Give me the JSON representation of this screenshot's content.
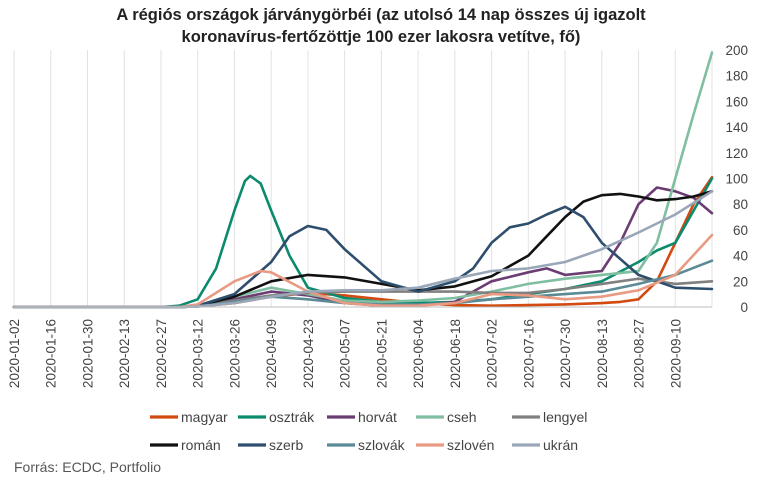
{
  "chart_data": {
    "type": "line",
    "title_lines": [
      "A régiós országok járványgörbéi (az utolsó 14 nap összes új igazolt",
      "koronavírus-fertőzöttje 100 ezer lakosra vetítve, fő)"
    ],
    "y_axis": {
      "min": 0,
      "max": 200,
      "step": 20,
      "position": "right",
      "ticks": [
        "0",
        "20",
        "40",
        "60",
        "80",
        "100",
        "120",
        "140",
        "160",
        "180",
        "200"
      ]
    },
    "x_axis": {
      "start": "2020-01-02",
      "end": "2020-09-24",
      "tick_labels": [
        "2020-01-02",
        "2020-01-16",
        "2020-01-30",
        "2020-02-13",
        "2020-02-27",
        "2020-03-12",
        "2020-03-26",
        "2020-04-09",
        "2020-04-23",
        "2020-05-07",
        "2020-05-21",
        "2020-06-04",
        "2020-06-18",
        "2020-07-02",
        "2020-07-16",
        "2020-07-30",
        "2020-08-13",
        "2020-08-27",
        "2020-09-10"
      ]
    },
    "grid": "vertical",
    "legend_position": "bottom",
    "series": [
      {
        "name": "magyar",
        "color": "#d24a10",
        "points": [
          [
            "2020-01-02",
            0
          ],
          [
            "2020-03-05",
            0
          ],
          [
            "2020-03-12",
            0.5
          ],
          [
            "2020-03-26",
            3
          ],
          [
            "2020-04-09",
            8
          ],
          [
            "2020-04-23",
            11
          ],
          [
            "2020-05-07",
            9
          ],
          [
            "2020-05-21",
            6
          ],
          [
            "2020-06-04",
            3
          ],
          [
            "2020-06-18",
            1.5
          ],
          [
            "2020-07-02",
            1
          ],
          [
            "2020-07-16",
            1.5
          ],
          [
            "2020-07-30",
            2
          ],
          [
            "2020-08-13",
            3
          ],
          [
            "2020-08-20",
            4
          ],
          [
            "2020-08-27",
            6
          ],
          [
            "2020-09-03",
            20
          ],
          [
            "2020-09-10",
            50
          ],
          [
            "2020-09-17",
            80
          ],
          [
            "2020-09-24",
            101
          ]
        ]
      },
      {
        "name": "osztrák",
        "color": "#0c8a6e",
        "points": [
          [
            "2020-01-02",
            0
          ],
          [
            "2020-02-27",
            0
          ],
          [
            "2020-03-05",
            1
          ],
          [
            "2020-03-12",
            6
          ],
          [
            "2020-03-19",
            30
          ],
          [
            "2020-03-26",
            75
          ],
          [
            "2020-03-30",
            98
          ],
          [
            "2020-04-01",
            102
          ],
          [
            "2020-04-05",
            96
          ],
          [
            "2020-04-09",
            75
          ],
          [
            "2020-04-16",
            40
          ],
          [
            "2020-04-23",
            15
          ],
          [
            "2020-05-07",
            7
          ],
          [
            "2020-05-21",
            4
          ],
          [
            "2020-06-04",
            3
          ],
          [
            "2020-06-18",
            4
          ],
          [
            "2020-07-02",
            6
          ],
          [
            "2020-07-16",
            10
          ],
          [
            "2020-07-30",
            14
          ],
          [
            "2020-08-13",
            20
          ],
          [
            "2020-08-27",
            35
          ],
          [
            "2020-09-03",
            44
          ],
          [
            "2020-09-10",
            50
          ],
          [
            "2020-09-17",
            75
          ],
          [
            "2020-09-24",
            100
          ]
        ]
      },
      {
        "name": "horvát",
        "color": "#6b3d73",
        "points": [
          [
            "2020-01-02",
            0
          ],
          [
            "2020-03-05",
            0
          ],
          [
            "2020-03-12",
            0.5
          ],
          [
            "2020-03-26",
            6
          ],
          [
            "2020-04-09",
            12
          ],
          [
            "2020-04-23",
            9
          ],
          [
            "2020-05-07",
            3
          ],
          [
            "2020-05-21",
            1
          ],
          [
            "2020-06-04",
            1
          ],
          [
            "2020-06-18",
            4
          ],
          [
            "2020-07-02",
            20
          ],
          [
            "2020-07-16",
            27
          ],
          [
            "2020-07-23",
            30
          ],
          [
            "2020-07-30",
            25
          ],
          [
            "2020-08-13",
            28
          ],
          [
            "2020-08-20",
            50
          ],
          [
            "2020-08-27",
            80
          ],
          [
            "2020-09-03",
            93
          ],
          [
            "2020-09-10",
            90
          ],
          [
            "2020-09-17",
            85
          ],
          [
            "2020-09-24",
            73
          ]
        ]
      },
      {
        "name": "cseh",
        "color": "#7fbea0",
        "points": [
          [
            "2020-01-02",
            0
          ],
          [
            "2020-03-05",
            0
          ],
          [
            "2020-03-12",
            1
          ],
          [
            "2020-03-26",
            8
          ],
          [
            "2020-04-09",
            15
          ],
          [
            "2020-04-23",
            10
          ],
          [
            "2020-05-07",
            5
          ],
          [
            "2020-05-21",
            4
          ],
          [
            "2020-06-04",
            5
          ],
          [
            "2020-06-18",
            7
          ],
          [
            "2020-07-02",
            12
          ],
          [
            "2020-07-16",
            18
          ],
          [
            "2020-07-30",
            22
          ],
          [
            "2020-08-13",
            25
          ],
          [
            "2020-08-27",
            28
          ],
          [
            "2020-09-03",
            50
          ],
          [
            "2020-09-10",
            100
          ],
          [
            "2020-09-17",
            150
          ],
          [
            "2020-09-24",
            198
          ]
        ]
      },
      {
        "name": "lengyel",
        "color": "#808080",
        "points": [
          [
            "2020-01-02",
            0
          ],
          [
            "2020-03-05",
            0
          ],
          [
            "2020-03-12",
            0.5
          ],
          [
            "2020-03-26",
            5
          ],
          [
            "2020-04-09",
            9
          ],
          [
            "2020-04-23",
            11
          ],
          [
            "2020-05-07",
            12
          ],
          [
            "2020-05-21",
            12
          ],
          [
            "2020-06-04",
            12
          ],
          [
            "2020-06-18",
            12
          ],
          [
            "2020-07-02",
            11
          ],
          [
            "2020-07-16",
            11
          ],
          [
            "2020-07-30",
            14
          ],
          [
            "2020-08-13",
            18
          ],
          [
            "2020-08-27",
            22
          ],
          [
            "2020-09-10",
            18
          ],
          [
            "2020-09-24",
            20
          ]
        ]
      },
      {
        "name": "román",
        "color": "#111111",
        "points": [
          [
            "2020-01-02",
            0
          ],
          [
            "2020-03-05",
            0
          ],
          [
            "2020-03-12",
            1
          ],
          [
            "2020-03-26",
            8
          ],
          [
            "2020-04-09",
            20
          ],
          [
            "2020-04-23",
            25
          ],
          [
            "2020-05-07",
            23
          ],
          [
            "2020-05-21",
            18
          ],
          [
            "2020-06-04",
            13
          ],
          [
            "2020-06-18",
            16
          ],
          [
            "2020-07-02",
            24
          ],
          [
            "2020-07-16",
            40
          ],
          [
            "2020-07-23",
            55
          ],
          [
            "2020-07-30",
            70
          ],
          [
            "2020-08-06",
            82
          ],
          [
            "2020-08-13",
            87
          ],
          [
            "2020-08-20",
            88
          ],
          [
            "2020-08-27",
            86
          ],
          [
            "2020-09-03",
            83
          ],
          [
            "2020-09-10",
            84
          ],
          [
            "2020-09-17",
            86
          ],
          [
            "2020-09-24",
            90
          ]
        ]
      },
      {
        "name": "szerb",
        "color": "#2e4e6e",
        "points": [
          [
            "2020-01-02",
            0
          ],
          [
            "2020-03-05",
            0
          ],
          [
            "2020-03-12",
            1
          ],
          [
            "2020-03-26",
            10
          ],
          [
            "2020-04-09",
            35
          ],
          [
            "2020-04-16",
            55
          ],
          [
            "2020-04-23",
            63
          ],
          [
            "2020-04-30",
            60
          ],
          [
            "2020-05-07",
            45
          ],
          [
            "2020-05-21",
            20
          ],
          [
            "2020-06-04",
            12
          ],
          [
            "2020-06-18",
            20
          ],
          [
            "2020-06-25",
            30
          ],
          [
            "2020-07-02",
            50
          ],
          [
            "2020-07-09",
            62
          ],
          [
            "2020-07-16",
            65
          ],
          [
            "2020-07-23",
            72
          ],
          [
            "2020-07-30",
            78
          ],
          [
            "2020-08-06",
            70
          ],
          [
            "2020-08-13",
            50
          ],
          [
            "2020-08-27",
            25
          ],
          [
            "2020-09-10",
            15
          ],
          [
            "2020-09-24",
            14
          ]
        ]
      },
      {
        "name": "szlovák",
        "color": "#5a8a96",
        "points": [
          [
            "2020-01-02",
            0
          ],
          [
            "2020-03-05",
            0
          ],
          [
            "2020-03-12",
            0.5
          ],
          [
            "2020-03-26",
            4
          ],
          [
            "2020-04-09",
            8
          ],
          [
            "2020-04-23",
            6
          ],
          [
            "2020-05-07",
            3
          ],
          [
            "2020-05-21",
            2
          ],
          [
            "2020-06-04",
            2
          ],
          [
            "2020-06-18",
            3
          ],
          [
            "2020-07-02",
            6
          ],
          [
            "2020-07-16",
            8
          ],
          [
            "2020-07-30",
            10
          ],
          [
            "2020-08-13",
            12
          ],
          [
            "2020-08-27",
            18
          ],
          [
            "2020-09-10",
            25
          ],
          [
            "2020-09-24",
            36
          ]
        ]
      },
      {
        "name": "szlovén",
        "color": "#e89a82",
        "points": [
          [
            "2020-01-02",
            0
          ],
          [
            "2020-03-05",
            0
          ],
          [
            "2020-03-12",
            2
          ],
          [
            "2020-03-26",
            20
          ],
          [
            "2020-04-05",
            28
          ],
          [
            "2020-04-09",
            27
          ],
          [
            "2020-04-23",
            12
          ],
          [
            "2020-05-07",
            3
          ],
          [
            "2020-05-21",
            1
          ],
          [
            "2020-06-04",
            1
          ],
          [
            "2020-06-18",
            3
          ],
          [
            "2020-07-02",
            10
          ],
          [
            "2020-07-16",
            9
          ],
          [
            "2020-07-30",
            6
          ],
          [
            "2020-08-13",
            8
          ],
          [
            "2020-08-27",
            13
          ],
          [
            "2020-09-10",
            25
          ],
          [
            "2020-09-24",
            56
          ]
        ]
      },
      {
        "name": "ukrán",
        "color": "#9aa7b8",
        "points": [
          [
            "2020-01-02",
            0
          ],
          [
            "2020-03-05",
            0
          ],
          [
            "2020-03-12",
            0.5
          ],
          [
            "2020-03-26",
            3
          ],
          [
            "2020-04-09",
            8
          ],
          [
            "2020-04-23",
            12
          ],
          [
            "2020-05-07",
            13
          ],
          [
            "2020-05-21",
            13
          ],
          [
            "2020-06-04",
            15
          ],
          [
            "2020-06-18",
            22
          ],
          [
            "2020-07-02",
            28
          ],
          [
            "2020-07-16",
            30
          ],
          [
            "2020-07-30",
            35
          ],
          [
            "2020-08-13",
            45
          ],
          [
            "2020-08-27",
            58
          ],
          [
            "2020-09-10",
            72
          ],
          [
            "2020-09-24",
            90
          ]
        ]
      }
    ],
    "source": "Forrás: ECDC, Portfolio"
  }
}
